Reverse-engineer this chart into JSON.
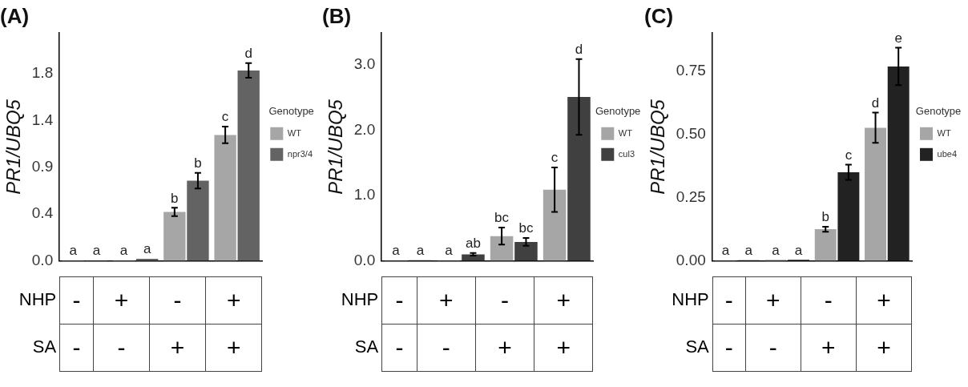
{
  "chart_data": [
    {
      "type": "bar",
      "title": "(A)",
      "ylabel": "PR1/UBQ5",
      "legend_title": "Genotype",
      "legend": "right",
      "tick_labels": "y",
      "categories": [
        "-\n-",
        "+\n-",
        "-\n+",
        "+\n+"
      ],
      "annotations": [
        "NHP",
        "SA"
      ],
      "ylim": [
        0,
        2.19
      ],
      "yticks": [
        {
          "value": 0,
          "label": "0.0"
        },
        {
          "value": 0.45,
          "label": "0.4"
        },
        0.9,
        {
          "value": 1.35,
          "label": "1.4"
        },
        1.8
      ],
      "series": [
        {
          "name": "WT",
          "color": "#a6a6a6",
          "values": [
            0.005,
            0.005,
            0.47,
            1.21
          ],
          "errors": [
            null,
            null,
            0.04,
            0.08
          ],
          "value_labels": [
            "a",
            "a",
            "b",
            "c"
          ]
        },
        {
          "name": "npr3/4",
          "color": "#636363",
          "values": [
            0.005,
            0.02,
            0.77,
            1.83
          ],
          "errors": [
            null,
            null,
            0.075,
            0.07
          ],
          "value_labels": [
            "a",
            "a",
            "b",
            "d"
          ]
        }
      ]
    },
    {
      "type": "bar",
      "title": "(B)",
      "ylabel": "PR1/UBQ5",
      "legend_title": "Genotype",
      "legend": "right",
      "tick_labels": "y",
      "categories": [
        "-\n-",
        "+\n-",
        "-\n+",
        "+\n+"
      ],
      "annotations": [
        "NHP",
        "SA"
      ],
      "ylim": [
        0,
        3.49
      ],
      "yticks": [
        {
          "value": 0,
          "label": "0.0"
        },
        {
          "value": 1,
          "label": "1.0"
        },
        {
          "value": 2,
          "label": "2.0"
        },
        {
          "value": 3,
          "label": "3.0"
        }
      ],
      "series": [
        {
          "name": "WT",
          "color": "#a6a6a6",
          "values": [
            0.01,
            0.01,
            0.38,
            1.09
          ],
          "errors": [
            null,
            null,
            0.13,
            0.34
          ],
          "value_labels": [
            "a",
            "a",
            "bc",
            "c"
          ]
        },
        {
          "name": "cul3",
          "color": "#404040",
          "values": [
            0.01,
            0.1,
            0.29,
            2.51
          ],
          "errors": [
            null,
            0.02,
            0.06,
            0.58
          ],
          "value_labels": [
            "a",
            "ab",
            "bc",
            "d"
          ]
        }
      ]
    },
    {
      "type": "bar",
      "title": "(C)",
      "ylabel": "PR1/UBQ5",
      "legend_title": "Genotype",
      "legend": "right",
      "tick_labels": "y",
      "categories": [
        "-\n-",
        "+\n-",
        "-\n+",
        "+\n+"
      ],
      "annotations": [
        "NHP",
        "SA"
      ],
      "ylim": [
        0,
        0.9
      ],
      "yticks": [
        {
          "value": 0,
          "label": "0.00"
        },
        0.25,
        {
          "value": 0.5,
          "label": "0.50"
        },
        0.75
      ],
      "series": [
        {
          "name": "WT",
          "color": "#a6a6a6",
          "values": [
            0.003,
            0.004,
            0.125,
            0.526
          ],
          "errors": [
            null,
            null,
            0.01,
            0.06
          ],
          "value_labels": [
            "a",
            "a",
            "b",
            "d"
          ]
        },
        {
          "name": "ube4",
          "color": "#222222",
          "values": [
            0.003,
            0.004,
            0.35,
            0.768
          ],
          "errors": [
            null,
            null,
            0.03,
            0.074
          ],
          "value_labels": [
            "a",
            "a",
            "c",
            "e"
          ]
        }
      ]
    }
  ]
}
